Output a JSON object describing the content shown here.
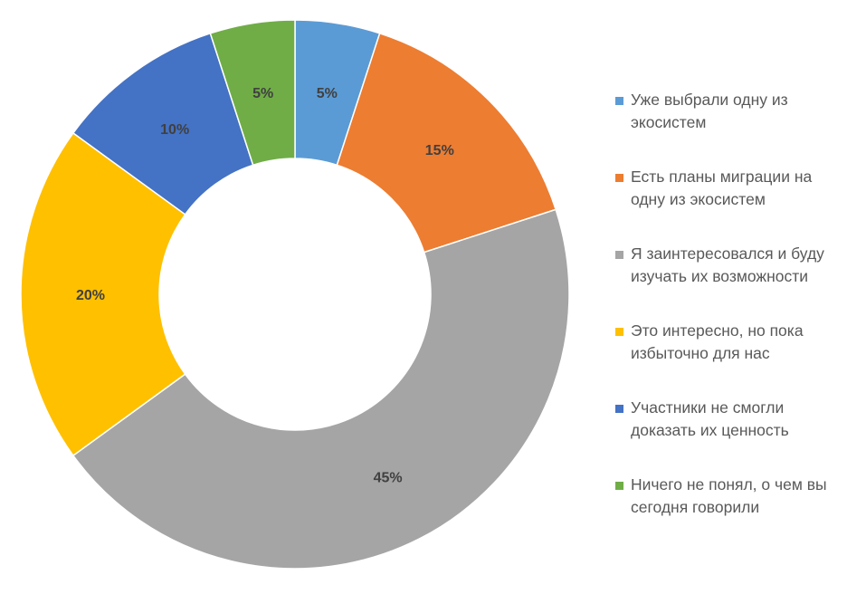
{
  "chart_data": {
    "type": "pie",
    "variant": "donut",
    "categories": [
      "Уже выбрали одну из экосистем",
      "Есть планы миграции на одну из экосистем",
      "Я заинтересовался и буду изучать их возможности",
      "Это интересно, но пока избыточно для нас",
      "Участники не смогли доказать их ценность",
      "Ничего не понял, о чем вы сегодня говорили"
    ],
    "legend_lines": [
      "Уже выбрали одну из\nэкосистем",
      "Есть планы миграции на\nодну из экосистем",
      "Я заинтересовался и буду\nизучать их возможности",
      "Это интересно, но пока\nизбыточно для нас",
      "Участники не смогли\nдоказать их ценность",
      "Ничего не понял, о чем вы\nсегодня говорили"
    ],
    "values": [
      5,
      15,
      45,
      20,
      10,
      5
    ],
    "data_labels": [
      "5%",
      "15%",
      "45%",
      "20%",
      "10%",
      "5%"
    ],
    "colors": [
      "#5B9BD5",
      "#ED7D31",
      "#A5A5A5",
      "#FFC000",
      "#4472C4",
      "#70AD47"
    ],
    "legend_position": "right",
    "title": ""
  }
}
